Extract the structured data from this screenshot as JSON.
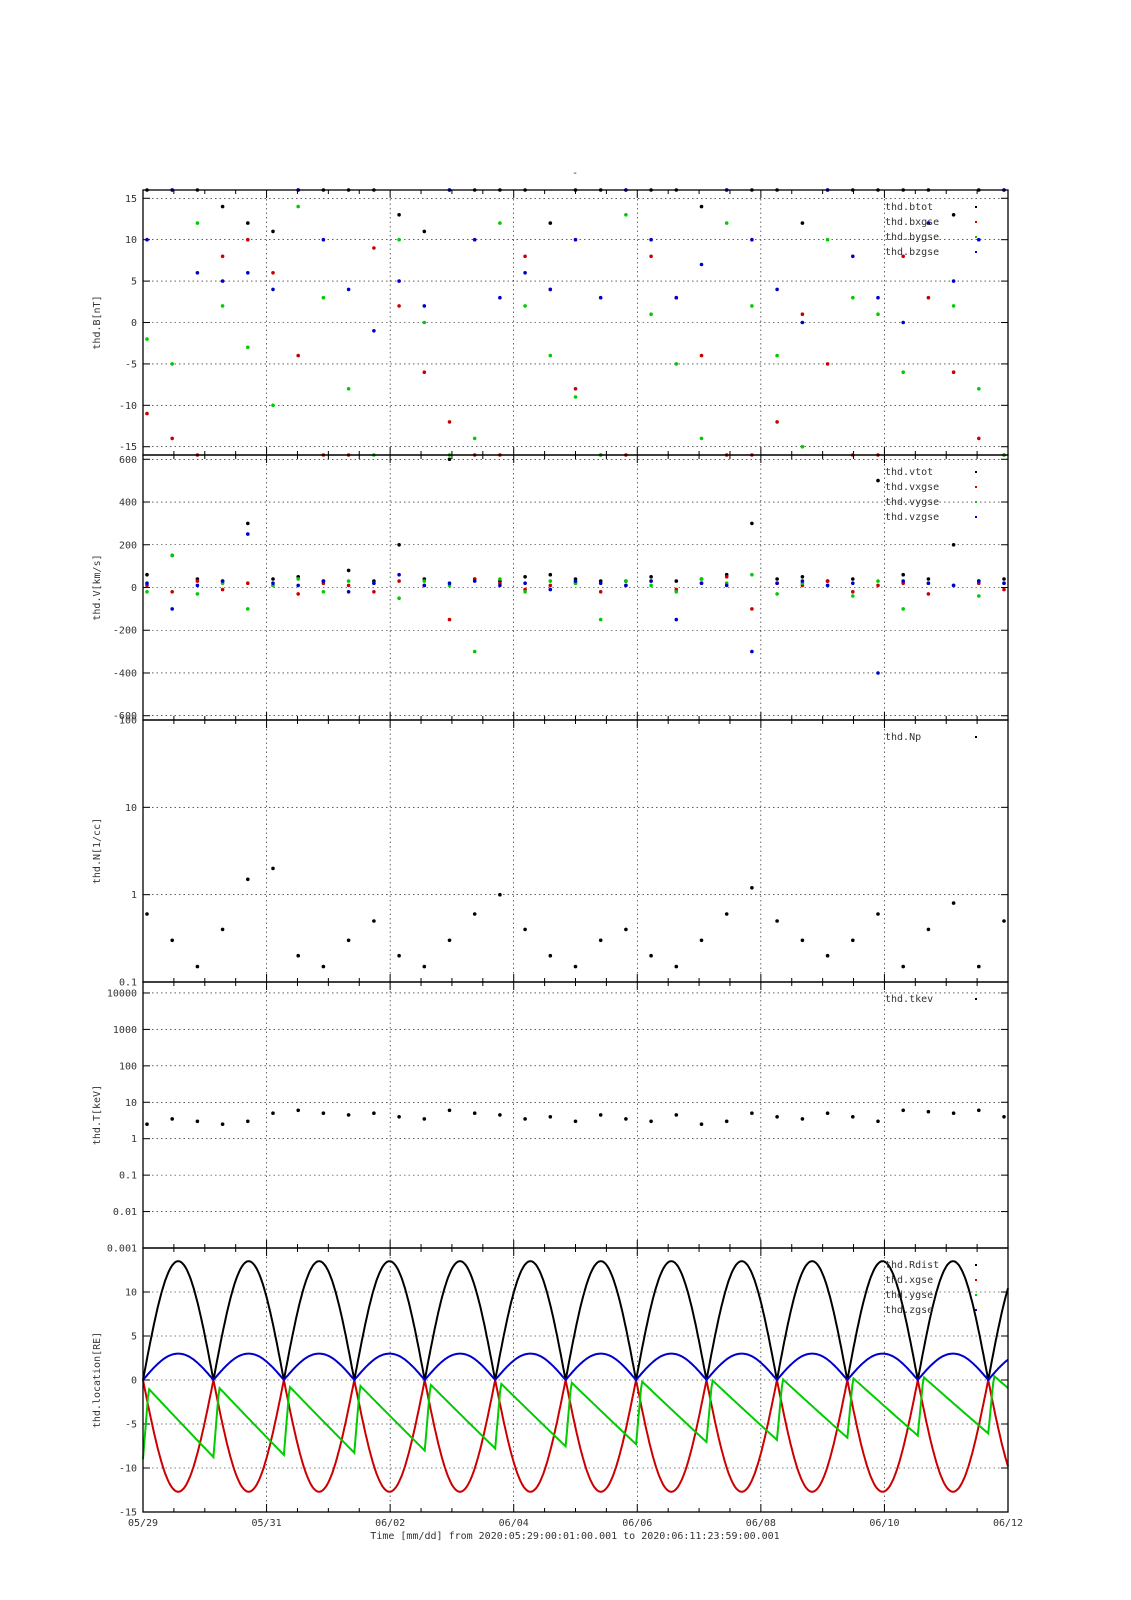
{
  "figure": {
    "title": "-",
    "xlabel": "Time [mm/dd]  from 2020:05:29:00:01:00.001  to  2020:06:11:23:59:00.001"
  },
  "chart_data": [
    {
      "type": "scatter",
      "ylabel": "thd.B[nT]",
      "ylim": [
        -16,
        16
      ],
      "yscale": "linear",
      "yticks": [
        -15,
        -10,
        -5,
        0,
        5,
        10,
        15
      ],
      "ytick_labels": [
        "-15",
        "-10",
        "-5",
        "0",
        "5",
        "10",
        "15"
      ],
      "grid": true,
      "legend": "top-right",
      "series": [
        {
          "name": "thd.btot",
          "color": "#000000",
          "y": [
            16,
            16,
            16,
            14,
            12,
            11,
            16,
            16,
            16,
            16,
            13,
            11,
            16,
            16,
            16,
            16,
            12,
            16,
            16,
            16,
            16,
            16,
            14,
            16,
            16,
            16,
            12,
            16,
            16,
            16,
            16,
            16,
            13,
            16,
            16
          ]
        },
        {
          "name": "thd.bxgse",
          "color": "#cc0000",
          "y": [
            -11,
            -14,
            -16,
            8,
            10,
            6,
            -4,
            -16,
            -16,
            9,
            2,
            -6,
            -12,
            -16,
            -16,
            8,
            4,
            -8,
            -16,
            -16,
            8,
            3,
            -4,
            -16,
            -16,
            -12,
            1,
            -5,
            -16,
            -16,
            8,
            3,
            -6,
            -14,
            -16
          ]
        },
        {
          "name": "thd.bygse",
          "color": "#00cc00",
          "y": [
            -2,
            -5,
            12,
            2,
            -3,
            -10,
            14,
            3,
            -8,
            -16,
            10,
            0,
            -16,
            -14,
            12,
            2,
            -4,
            -9,
            -16,
            13,
            1,
            -5,
            -14,
            12,
            2,
            -4,
            -15,
            10,
            3,
            1,
            -6,
            12,
            2,
            -8,
            -16
          ]
        },
        {
          "name": "thd.bzgse",
          "color": "#0000cc",
          "y": [
            10,
            16,
            6,
            5,
            6,
            4,
            16,
            10,
            4,
            -1,
            5,
            2,
            16,
            10,
            3,
            6,
            4,
            10,
            3,
            16,
            10,
            3,
            7,
            16,
            10,
            4,
            0,
            16,
            8,
            3,
            0,
            12,
            5,
            10,
            16
          ]
        }
      ]
    },
    {
      "type": "scatter",
      "ylabel": "thd.V[km/s]",
      "ylim": [
        -620,
        620
      ],
      "yscale": "linear",
      "yticks": [
        -600,
        -400,
        -200,
        0,
        200,
        400,
        600
      ],
      "ytick_labels": [
        "-600",
        "-400",
        "-200",
        "0",
        "200",
        "400",
        "600"
      ],
      "grid": true,
      "legend": "top-right",
      "series": [
        {
          "name": "thd.vtot",
          "color": "#000000",
          "y": [
            60,
            150,
            40,
            30,
            300,
            40,
            50,
            30,
            80,
            30,
            200,
            40,
            600,
            40,
            30,
            50,
            60,
            40,
            30,
            30,
            50,
            30,
            40,
            60,
            300,
            40,
            50,
            30,
            40,
            500,
            60,
            40,
            200,
            30,
            40
          ]
        },
        {
          "name": "thd.vxgse",
          "color": "#cc0000",
          "y": [
            10,
            -20,
            30,
            -10,
            20,
            10,
            -30,
            20,
            10,
            -20,
            30,
            10,
            -150,
            40,
            20,
            -10,
            10,
            20,
            -20,
            10,
            30,
            -10,
            20,
            50,
            -100,
            20,
            10,
            30,
            -20,
            10,
            20,
            -30,
            10,
            20,
            -10
          ]
        },
        {
          "name": "thd.vygse",
          "color": "#00cc00",
          "y": [
            -20,
            150,
            -30,
            20,
            -100,
            10,
            40,
            -20,
            30,
            20,
            -50,
            30,
            10,
            -300,
            40,
            -20,
            30,
            20,
            -150,
            30,
            10,
            -20,
            40,
            20,
            60,
            -30,
            20,
            10,
            -40,
            30,
            -100,
            20,
            10,
            -40,
            20
          ]
        },
        {
          "name": "thd.vzgse",
          "color": "#0000cc",
          "y": [
            20,
            -100,
            10,
            30,
            250,
            20,
            10,
            30,
            -20,
            20,
            60,
            10,
            20,
            30,
            10,
            20,
            -10,
            30,
            20,
            10,
            30,
            -150,
            20,
            10,
            -300,
            20,
            30,
            10,
            20,
            -400,
            30,
            20,
            10,
            30,
            20
          ]
        }
      ]
    },
    {
      "type": "scatter",
      "ylabel": "thd.N[1/cc]",
      "ylim": [
        0.1,
        100
      ],
      "yscale": "log",
      "yticks": [
        0.1,
        1,
        10,
        100
      ],
      "ytick_labels": [
        "0.1",
        "1",
        "10",
        "100"
      ],
      "grid": true,
      "legend": "top-right",
      "series": [
        {
          "name": "thd.Np",
          "color": "#000000",
          "y": [
            0.6,
            0.3,
            0.15,
            0.4,
            1.5,
            2.0,
            0.2,
            0.15,
            0.3,
            0.5,
            0.2,
            0.15,
            0.3,
            0.6,
            1.0,
            0.4,
            0.2,
            0.15,
            0.3,
            0.4,
            0.2,
            0.15,
            0.3,
            0.6,
            1.2,
            0.5,
            0.3,
            0.2,
            0.3,
            0.6,
            0.15,
            0.4,
            0.8,
            0.15,
            0.5
          ]
        }
      ]
    },
    {
      "type": "scatter",
      "ylabel": "thd.T[keV]",
      "ylim": [
        0.001,
        20000
      ],
      "yscale": "log",
      "yticks": [
        0.001,
        0.01,
        0.1,
        1,
        10,
        100,
        1000,
        10000
      ],
      "ytick_labels": [
        "0.001",
        "0.01",
        "0.1",
        "1",
        "10",
        "100",
        "1000",
        "10000"
      ],
      "grid": true,
      "legend": "top-right",
      "series": [
        {
          "name": "thd.tkev",
          "color": "#000000",
          "y": [
            2.5,
            3.5,
            3.0,
            2.5,
            3.0,
            5.0,
            6.0,
            5.0,
            4.5,
            5.0,
            4.0,
            3.5,
            6.0,
            5.0,
            4.5,
            3.5,
            4.0,
            3.0,
            4.5,
            3.5,
            3.0,
            4.5,
            2.5,
            3.0,
            5.0,
            4.0,
            3.5,
            5.0,
            4.0,
            3.0,
            6.0,
            5.5,
            5.0,
            6.0,
            4.0
          ]
        }
      ]
    },
    {
      "type": "line",
      "ylabel": "thd.location[RE]",
      "ylim": [
        -15,
        15
      ],
      "yscale": "linear",
      "yticks": [
        -15,
        -10,
        -5,
        0,
        5,
        10
      ],
      "ytick_labels": [
        "-15",
        "-10",
        "-5",
        "0",
        "5",
        "10"
      ],
      "grid": true,
      "legend": "top-right",
      "orbit": {
        "period_days": 1.14,
        "apogee_re": 13.5,
        "y_start": -4.5,
        "y_end": -3.0,
        "zgse_amp": 3.0
      },
      "series": [
        {
          "name": "thd.Rdist",
          "color": "#000000"
        },
        {
          "name": "thd.xgse",
          "color": "#cc0000"
        },
        {
          "name": "thd.ygse",
          "color": "#00cc00"
        },
        {
          "name": "thd.zgse",
          "color": "#0000cc"
        }
      ]
    }
  ],
  "xaxis": {
    "type": "time",
    "start": "05/29",
    "end": "06/12",
    "span_days": 14,
    "ticks": [
      {
        "day": 0,
        "label": "05/29"
      },
      {
        "day": 2,
        "label": "05/31"
      },
      {
        "day": 4,
        "label": "06/02"
      },
      {
        "day": 6,
        "label": "06/04"
      },
      {
        "day": 8,
        "label": "06/06"
      },
      {
        "day": 10,
        "label": "06/08"
      },
      {
        "day": 12,
        "label": "06/10"
      },
      {
        "day": 14,
        "label": "06/12"
      }
    ]
  }
}
